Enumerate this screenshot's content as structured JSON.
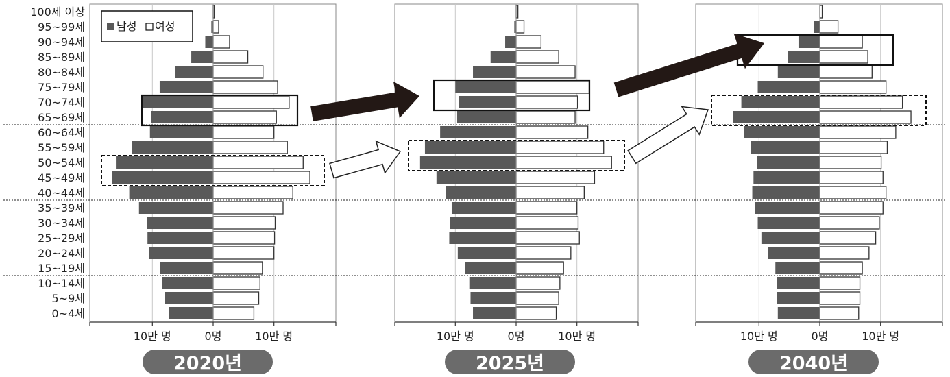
{
  "legend": {
    "male": "남성",
    "female": "여성"
  },
  "chart_data": {
    "type": "bar",
    "orientation": "horizontal",
    "subtype": "population-pyramid",
    "unit": "명",
    "xticks": [
      "10만 명",
      "0명",
      "10만 명"
    ],
    "categories": [
      "100세 이상",
      "95~99세",
      "90~94세",
      "85~89세",
      "80~84세",
      "75~79세",
      "70~74세",
      "65~69세",
      "60~64세",
      "55~59세",
      "50~54세",
      "45~49세",
      "40~44세",
      "35~39세",
      "30~34세",
      "25~29세",
      "20~24세",
      "15~19세",
      "10~14세",
      "5~9세",
      "0~4세"
    ],
    "panels": [
      {
        "year_label": "2020년",
        "series": [
          {
            "name": "남성",
            "color": "#595959",
            "values": [
              0,
              3000,
              13000,
              36000,
              62000,
              88000,
              115000,
              102000,
              104000,
              134000,
              160000,
              166000,
              138000,
              122000,
              109000,
              108000,
              105000,
              87000,
              84000,
              80000,
              73000
            ]
          },
          {
            "name": "여성",
            "color": "#ffffff",
            "values": [
              1000,
              9000,
              27000,
              57000,
              82000,
              106000,
              125000,
              104000,
              100000,
              122000,
              148000,
              159000,
              131000,
              115000,
              102000,
              101000,
              100000,
              81000,
              77000,
              75000,
              67000
            ]
          }
        ],
        "highlights": [
          {
            "style": "solid",
            "age_groups": [
              "70~74세",
              "65~69세"
            ]
          },
          {
            "style": "dashed",
            "age_groups": [
              "50~54세",
              "45~49세"
            ]
          }
        ]
      },
      {
        "year_label": "2025년",
        "series": [
          {
            "name": "남성",
            "color": "#595959",
            "values": [
              0,
              3000,
              18000,
              42000,
              71000,
              100000,
              94000,
              97000,
              125000,
              150000,
              158000,
              131000,
              116000,
              106000,
              109000,
              110000,
              96000,
              84000,
              77000,
              75000,
              71000
            ]
          },
          {
            "name": "여성",
            "color": "#ffffff",
            "values": [
              3000,
              13000,
              41000,
              70000,
              97000,
              120000,
              101000,
              97000,
              118000,
              144000,
              157000,
              129000,
              112000,
              100000,
              102000,
              104000,
              90000,
              78000,
              72000,
              70000,
              66000
            ]
          }
        ],
        "highlights": [
          {
            "style": "solid",
            "age_groups": [
              "75~79세",
              "70~74세"
            ]
          },
          {
            "style": "dashed",
            "age_groups": [
              "55~59세",
              "50~54세"
            ]
          }
        ]
      },
      {
        "year_label": "2040년",
        "series": [
          {
            "name": "남성",
            "color": "#595959",
            "values": [
              0,
              10000,
              35000,
              52000,
              69000,
              102000,
              129000,
              143000,
              125000,
              113000,
              103000,
              109000,
              111000,
              106000,
              102000,
              96000,
              85000,
              73000,
              71000,
              70000,
              69000
            ]
          },
          {
            "name": "여성",
            "color": "#ffffff",
            "values": [
              4000,
              30000,
              70000,
              79000,
              86000,
              109000,
              136000,
              150000,
              125000,
              111000,
              101000,
              104000,
              109000,
              104000,
              98000,
              92000,
              81000,
              70000,
              66000,
              66000,
              64000
            ]
          }
        ],
        "highlights": [
          {
            "style": "solid",
            "age_groups": [
              "90~94세",
              "85~89세"
            ]
          },
          {
            "style": "dashed",
            "age_groups": [
              "70~74세",
              "65~69세"
            ]
          }
        ]
      }
    ],
    "transition_arrows": [
      {
        "from": "2020년",
        "to": "2025년",
        "style": "solid",
        "links": "solid"
      },
      {
        "from": "2020년",
        "to": "2025년",
        "style": "outline",
        "links": "dashed"
      },
      {
        "from": "2025년",
        "to": "2040년",
        "style": "solid",
        "links": "solid"
      },
      {
        "from": "2025년",
        "to": "2040년",
        "style": "outline",
        "links": "dashed"
      }
    ]
  }
}
